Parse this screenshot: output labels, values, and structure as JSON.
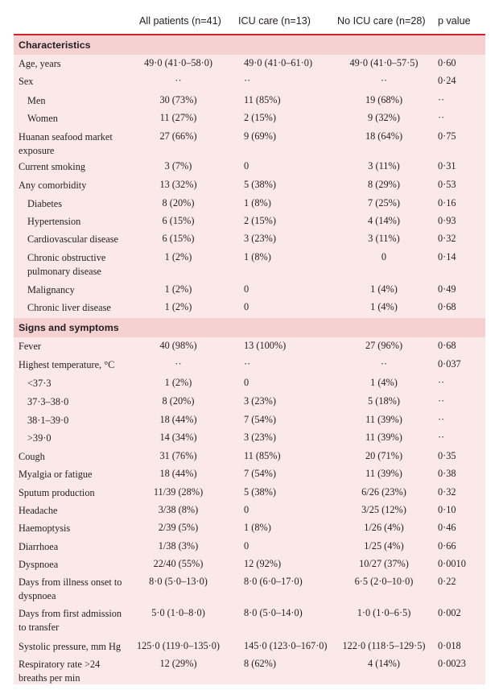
{
  "columns": [
    "All patients (n=41)",
    "ICU care (n=13)",
    "No ICU care (n=28)",
    "p value"
  ],
  "sections": [
    {
      "title": "Characteristics",
      "rows": [
        {
          "label": "Age, years",
          "all": "49·0 (41·0–58·0)",
          "icu": "49·0 (41·0–61·0)",
          "noicu": "49·0 (41·0–57·5)",
          "p": "0·60"
        },
        {
          "label": "Sex",
          "all": "··",
          "icu": "··",
          "noicu": "··",
          "p": "0·24"
        },
        {
          "label": "Men",
          "sub": true,
          "all": "30 (73%)",
          "icu": "11 (85%)",
          "noicu": "19 (68%)",
          "p": "··"
        },
        {
          "label": "Women",
          "sub": true,
          "all": "11 (27%)",
          "icu": "2 (15%)",
          "noicu": "9 (32%)",
          "p": "··"
        },
        {
          "label": "Huanan seafood market exposure",
          "all": "27 (66%)",
          "icu": "9 (69%)",
          "noicu": "18 (64%)",
          "p": "0·75"
        },
        {
          "label": "Current smoking",
          "all": "3 (7%)",
          "icu": "0",
          "noicu": "3 (11%)",
          "p": "0·31"
        },
        {
          "label": "Any comorbidity",
          "all": "13 (32%)",
          "icu": "5 (38%)",
          "noicu": "8 (29%)",
          "p": "0·53"
        },
        {
          "label": "Diabetes",
          "sub": true,
          "all": "8 (20%)",
          "icu": "1 (8%)",
          "noicu": "7 (25%)",
          "p": "0·16"
        },
        {
          "label": "Hypertension",
          "sub": true,
          "all": "6 (15%)",
          "icu": "2 (15%)",
          "noicu": "4 (14%)",
          "p": "0·93"
        },
        {
          "label": "Cardiovascular disease",
          "sub": true,
          "all": "6 (15%)",
          "icu": "3 (23%)",
          "noicu": "3 (11%)",
          "p": "0·32"
        },
        {
          "label": "Chronic obstructive pulmonary disease",
          "sub": true,
          "all": "1 (2%)",
          "icu": "1 (8%)",
          "noicu": "0",
          "p": "0·14"
        },
        {
          "label": "Malignancy",
          "sub": true,
          "all": "1 (2%)",
          "icu": "0",
          "noicu": "1 (4%)",
          "p": "0·49"
        },
        {
          "label": "Chronic liver disease",
          "sub": true,
          "all": "1 (2%)",
          "icu": "0",
          "noicu": "1 (4%)",
          "p": "0·68"
        }
      ]
    },
    {
      "title": "Signs and symptoms",
      "rows": [
        {
          "label": "Fever",
          "all": "40 (98%)",
          "icu": "13 (100%)",
          "noicu": "27 (96%)",
          "p": "0·68"
        },
        {
          "label": "Highest temperature, °C",
          "all": "··",
          "icu": "··",
          "noicu": "··",
          "p": "0·037"
        },
        {
          "label": "<37·3",
          "sub": true,
          "all": "1 (2%)",
          "icu": "0",
          "noicu": "1 (4%)",
          "p": "··"
        },
        {
          "label": "37·3–38·0",
          "sub": true,
          "all": "8 (20%)",
          "icu": "3 (23%)",
          "noicu": "5 (18%)",
          "p": "··"
        },
        {
          "label": "38·1–39·0",
          "sub": true,
          "all": "18 (44%)",
          "icu": "7 (54%)",
          "noicu": "11 (39%)",
          "p": "··"
        },
        {
          "label": ">39·0",
          "sub": true,
          "all": "14 (34%)",
          "icu": "3 (23%)",
          "noicu": "11 (39%)",
          "p": "··"
        },
        {
          "label": "Cough",
          "all": "31 (76%)",
          "icu": "11 (85%)",
          "noicu": "20 (71%)",
          "p": "0·35"
        },
        {
          "label": "Myalgia or fatigue",
          "all": "18 (44%)",
          "icu": "7 (54%)",
          "noicu": "11 (39%)",
          "p": "0·38"
        },
        {
          "label": "Sputum production",
          "all": "11/39 (28%)",
          "icu": "5 (38%)",
          "noicu": "6/26 (23%)",
          "p": "0·32"
        },
        {
          "label": "Headache",
          "all": "3/38 (8%)",
          "icu": "0",
          "noicu": "3/25 (12%)",
          "p": "0·10"
        },
        {
          "label": "Haemoptysis",
          "all": "2/39 (5%)",
          "icu": "1 (8%)",
          "noicu": "1/26 (4%)",
          "p": "0·46"
        },
        {
          "label": "Diarrhoea",
          "all": "1/38 (3%)",
          "icu": "0",
          "noicu": "1/25 (4%)",
          "p": "0·66"
        },
        {
          "label": "Dyspnoea",
          "all": "22/40 (55%)",
          "icu": "12 (92%)",
          "noicu": "10/27 (37%)",
          "p": "0·0010"
        },
        {
          "label": "Days from illness onset to dyspnoea",
          "all": "8·0 (5·0–13·0)",
          "icu": "8·0 (6·0–17·0)",
          "noicu": "6·5 (2·0–10·0)",
          "p": "0·22"
        },
        {
          "label": "Days from first admission to transfer",
          "all": "5·0 (1·0–8·0)",
          "icu": "8·0 (5·0–14·0)",
          "noicu": "1·0 (1·0–6·5)",
          "p": "0·002"
        },
        {
          "label": "Systolic pressure, mm Hg",
          "all": "125·0 (119·0–135·0)",
          "icu": "145·0 (123·0–167·0)",
          "noicu": "122·0 (118·5–129·5)",
          "p": "0·018"
        },
        {
          "label": "Respiratory rate >24 breaths per min",
          "all": "12 (29%)",
          "icu": "8 (62%)",
          "noicu": "4 (14%)",
          "p": "0·0023"
        }
      ]
    }
  ]
}
